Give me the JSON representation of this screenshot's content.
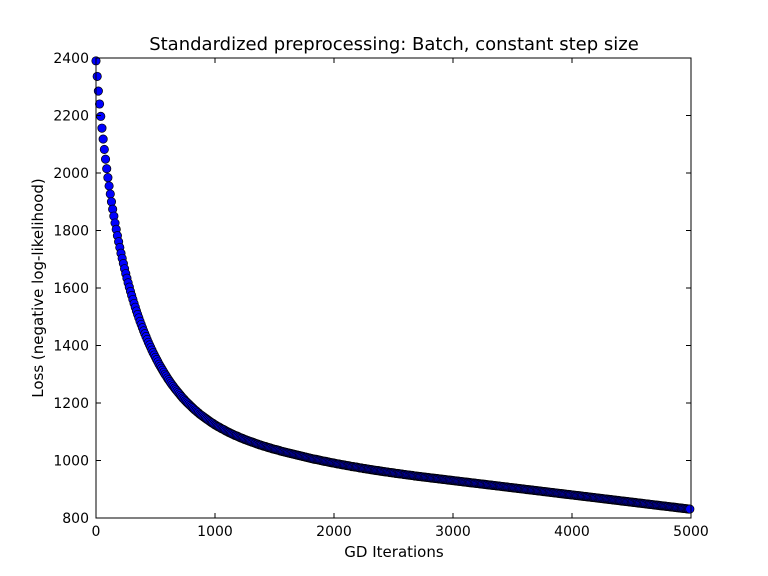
{
  "chart_data": {
    "type": "scatter",
    "title": "Standardized preprocessing: Batch, constant step size",
    "xlabel": "GD Iterations",
    "ylabel": "Loss (negative log-likelihood)",
    "xlim": [
      0,
      5000
    ],
    "ylim": [
      800,
      2400
    ],
    "xticks": [
      0,
      1000,
      2000,
      3000,
      4000,
      5000
    ],
    "yticks": [
      800,
      1000,
      1200,
      1400,
      1600,
      1800,
      2000,
      2200,
      2400
    ],
    "grid": false,
    "legend": "none",
    "marker": "circle",
    "marker_color": "#0000ff",
    "marker_edge_color": "#000000",
    "series": [
      {
        "x": [
          0,
          10,
          20,
          30,
          40,
          50,
          60,
          70,
          80,
          90,
          100,
          110,
          120,
          130,
          140,
          150,
          160,
          170,
          180,
          190,
          200,
          210,
          220,
          230,
          240,
          250,
          260,
          270,
          280,
          290,
          300,
          310,
          320,
          330,
          340,
          350,
          360,
          370,
          380,
          390,
          400,
          410,
          420,
          430,
          440,
          450,
          460,
          470,
          480,
          490,
          500,
          510,
          520,
          530,
          540,
          550,
          560,
          570,
          580,
          590,
          600,
          610,
          620,
          630,
          640,
          650,
          660,
          670,
          680,
          690,
          700,
          710,
          720,
          730,
          740,
          750,
          760,
          770,
          780,
          790,
          800,
          810,
          820,
          830,
          840,
          850,
          860,
          870,
          880,
          890,
          900,
          910,
          920,
          930,
          940,
          950,
          960,
          970,
          980,
          990,
          1000,
          1010,
          1020,
          1030,
          1040,
          1050,
          1060,
          1070,
          1080,
          1090,
          1100,
          1110,
          1120,
          1130,
          1140,
          1150,
          1160,
          1170,
          1180,
          1190,
          1200,
          1210,
          1220,
          1230,
          1240,
          1250,
          1260,
          1270,
          1280,
          1290,
          1300,
          1310,
          1320,
          1330,
          1340,
          1350,
          1360,
          1370,
          1380,
          1390,
          1400,
          1410,
          1420,
          1430,
          1440,
          1450,
          1460,
          1470,
          1480,
          1490,
          1500,
          1510,
          1520,
          1530,
          1540,
          1550,
          1560,
          1570,
          1580,
          1590,
          1600,
          1610,
          1620,
          1630,
          1640,
          1650,
          1660,
          1670,
          1680,
          1690,
          1700,
          1710,
          1720,
          1730,
          1740,
          1750,
          1760,
          1770,
          1780,
          1790,
          1800,
          1810,
          1820,
          1830,
          1840,
          1850,
          1860,
          1870,
          1880,
          1890,
          1900,
          1910,
          1920,
          1930,
          1940,
          1950,
          1960,
          1970,
          1980,
          1990,
          2000,
          2010,
          2020,
          2030,
          2040,
          2050,
          2060,
          2070,
          2080,
          2090,
          2100,
          2110,
          2120,
          2130,
          2140,
          2150,
          2160,
          2170,
          2180,
          2190,
          2200,
          2210,
          2220,
          2230,
          2240,
          2250,
          2260,
          2270,
          2280,
          2290,
          2300,
          2310,
          2320,
          2330,
          2340,
          2350,
          2360,
          2370,
          2380,
          2390,
          2400,
          2410,
          2420,
          2430,
          2440,
          2450,
          2460,
          2470,
          2480,
          2490,
          2500,
          2510,
          2520,
          2530,
          2540,
          2550,
          2560,
          2570,
          2580,
          2590,
          2600,
          2610,
          2620,
          2630,
          2640,
          2650,
          2660,
          2670,
          2680,
          2690,
          2700,
          2710,
          2720,
          2730,
          2740,
          2750,
          2760,
          2770,
          2780,
          2790,
          2800,
          2810,
          2820,
          2830,
          2840,
          2850,
          2860,
          2870,
          2880,
          2890,
          2900,
          2910,
          2920,
          2930,
          2940,
          2950,
          2960,
          2970,
          2980,
          2990,
          3000,
          3010,
          3020,
          3030,
          3040,
          3050,
          3060,
          3070,
          3080,
          3090,
          3100,
          3110,
          3120,
          3130,
          3140,
          3150,
          3160,
          3170,
          3180,
          3190,
          3200,
          3210,
          3220,
          3230,
          3240,
          3250,
          3260,
          3270,
          3280,
          3290,
          3300,
          3310,
          3320,
          3330,
          3340,
          3350,
          3360,
          3370,
          3380,
          3390,
          3400,
          3410,
          3420,
          3430,
          3440,
          3450,
          3460,
          3470,
          3480,
          3490,
          3500,
          3510,
          3520,
          3530,
          3540,
          3550,
          3560,
          3570,
          3580,
          3590,
          3600,
          3610,
          3620,
          3630,
          3640,
          3650,
          3660,
          3670,
          3680,
          3690,
          3700,
          3710,
          3720,
          3730,
          3740,
          3750,
          3760,
          3770,
          3780,
          3790,
          3800,
          3810,
          3820,
          3830,
          3840,
          3850,
          3860,
          3870,
          3880,
          3890,
          3900,
          3910,
          3920,
          3930,
          3940,
          3950,
          3960,
          3970,
          3980,
          3990,
          4000,
          4010,
          4020,
          4030,
          4040,
          4050,
          4060,
          4070,
          4080,
          4090,
          4100,
          4110,
          4120,
          4130,
          4140,
          4150,
          4160,
          4170,
          4180,
          4190,
          4200,
          4210,
          4220,
          4230,
          4240,
          4250,
          4260,
          4270,
          4280,
          4290,
          4300,
          4310,
          4320,
          4330,
          4340,
          4350,
          4360,
          4370,
          4380,
          4390,
          4400,
          4410,
          4420,
          4430,
          4440,
          4450,
          4460,
          4470,
          4480,
          4490,
          4500,
          4510,
          4520,
          4530,
          4540,
          4550,
          4560,
          4570,
          4580,
          4590,
          4600,
          4610,
          4620,
          4630,
          4640,
          4650,
          4660,
          4670,
          4680,
          4690,
          4700,
          4710,
          4720,
          4730,
          4740,
          4750,
          4760,
          4770,
          4780,
          4790,
          4800,
          4810,
          4820,
          4830,
          4840,
          4850,
          4860,
          4870,
          4880,
          4890,
          4900,
          4910,
          4920,
          4930,
          4940,
          4950,
          4960,
          4970,
          4980,
          4990
        ],
        "y": [
          2390,
          2336,
          2285,
          2240,
          2197,
          2156,
          2118,
          2082,
          2048,
          2015,
          1984,
          1955,
          1927,
          1900,
          1874,
          1850,
          1826,
          1804,
          1782,
          1761,
          1741,
          1721,
          1703,
          1685,
          1667,
          1650,
          1634,
          1618,
          1603,
          1588,
          1574,
          1560,
          1546,
          1533,
          1520,
          1508,
          1496,
          1484,
          1473,
          1462,
          1451,
          1441,
          1431,
          1421,
          1411,
          1402,
          1393,
          1384,
          1375,
          1367,
          1359,
          1351,
          1343,
          1335,
          1328,
          1321,
          1314,
          1307,
          1300,
          1294,
          1287,
          1281,
          1275,
          1269,
          1263,
          1258,
          1252,
          1247,
          1242,
          1237,
          1232,
          1227,
          1222,
          1217,
          1213,
          1208,
          1204,
          1200,
          1196,
          1192,
          1188,
          1184,
          1180,
          1176,
          1173,
          1169,
          1166,
          1162,
          1159,
          1156,
          1153,
          1150,
          1147,
          1144,
          1141,
          1138,
          1135,
          1132,
          1130,
          1127,
          1124,
          1122,
          1119,
          1117,
          1115,
          1112,
          1110,
          1108,
          1106,
          1103,
          1101,
          1099,
          1097,
          1095,
          1093,
          1091,
          1089,
          1087,
          1086,
          1084,
          1082,
          1080,
          1078,
          1077,
          1075,
          1073,
          1072,
          1070,
          1069,
          1067,
          1066,
          1064,
          1063,
          1061,
          1060,
          1058,
          1057,
          1055,
          1054,
          1053,
          1051,
          1050,
          1049,
          1048,
          1046,
          1045,
          1044,
          1043,
          1041,
          1040,
          1039,
          1038,
          1037,
          1036,
          1035,
          1033,
          1032,
          1031,
          1030,
          1029,
          1028,
          1027,
          1026,
          1025,
          1024,
          1023,
          1022,
          1021,
          1020,
          1019,
          1018,
          1017,
          1016,
          1015,
          1014,
          1013,
          1012,
          1011,
          1010,
          1009,
          1008,
          1007,
          1006,
          1005,
          1004,
          1004,
          1003,
          1002,
          1001,
          1000,
          999,
          998,
          997,
          997,
          996,
          995,
          994,
          993,
          992,
          992,
          991,
          990,
          989,
          988,
          988,
          987,
          986,
          985,
          985,
          984,
          983,
          982,
          982,
          981,
          980,
          979,
          979,
          978,
          977,
          977,
          976,
          975,
          974,
          974,
          973,
          972,
          972,
          971,
          970,
          970,
          969,
          968,
          968,
          967,
          966,
          966,
          965,
          965,
          964,
          963,
          963,
          962,
          961,
          961,
          960,
          960,
          959,
          958,
          958,
          957,
          957,
          956,
          955,
          955,
          954,
          954,
          953,
          953,
          952,
          951,
          951,
          950,
          950,
          949,
          949,
          948,
          948,
          947,
          946,
          946,
          945,
          945,
          944,
          944,
          943,
          943,
          942,
          942,
          941,
          941,
          940,
          940,
          939,
          939,
          938,
          938,
          937,
          937,
          936,
          936,
          935,
          935,
          934,
          934,
          933,
          933,
          932,
          932,
          931,
          931,
          930,
          930,
          929,
          929,
          928,
          928,
          927,
          927,
          926,
          926,
          925,
          925,
          924,
          924,
          923,
          923,
          922,
          922,
          921,
          921,
          920,
          920,
          919,
          919,
          918,
          918,
          917,
          917,
          916,
          916,
          915,
          915,
          914,
          914,
          913,
          913,
          912,
          912,
          911,
          911,
          910,
          910,
          909,
          909,
          908,
          908,
          907,
          907,
          906,
          906,
          905,
          905,
          904,
          904,
          903,
          903,
          902,
          902,
          901,
          901,
          900,
          900,
          899,
          899,
          898,
          898,
          897,
          897,
          896,
          896,
          895,
          895,
          894,
          894,
          893,
          893,
          892,
          892,
          891,
          891,
          890,
          890,
          889,
          889,
          888,
          888,
          887,
          887,
          886,
          886,
          885,
          885,
          884,
          884,
          883,
          883,
          882,
          882,
          881,
          881,
          880,
          880,
          879,
          879,
          878,
          878,
          877,
          877,
          876,
          876,
          875,
          875,
          874,
          874,
          873,
          873,
          872,
          872,
          871,
          871,
          870,
          870,
          869,
          869,
          868,
          868,
          867,
          867,
          866,
          866,
          865,
          865,
          864,
          864,
          863,
          863,
          862,
          862,
          861,
          861,
          860,
          860,
          859,
          859,
          858,
          858,
          857,
          857,
          856,
          856,
          855,
          855,
          854,
          854,
          853,
          853,
          852,
          852,
          851,
          851,
          850,
          850,
          849,
          849,
          848,
          848,
          847,
          847,
          846,
          846,
          845,
          845,
          844,
          844,
          843,
          843,
          842,
          842,
          841,
          841,
          840,
          840,
          839,
          839,
          838,
          838,
          837,
          837,
          836,
          836,
          835,
          835,
          834,
          834,
          833,
          833,
          832,
          832,
          831,
          831
        ]
      }
    ]
  }
}
